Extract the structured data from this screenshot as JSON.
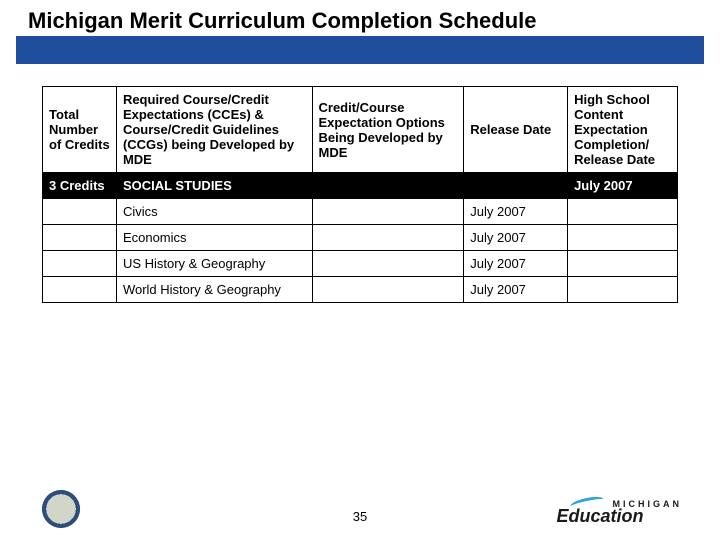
{
  "title": "Michigan Merit Curriculum Completion Schedule",
  "pageNumber": "35",
  "logo": {
    "line1": "MICHIGAN",
    "line2": "Education"
  },
  "table": {
    "headers": {
      "col0": "Total Number of Credits",
      "col1": "Required Course/Credit Expectations (CCEs) &  Course/Credit Guidelines (CCGs) being Developed by MDE",
      "col2": "Credit/Course Expectation Options Being Developed by MDE",
      "col3": "Release Date",
      "col4": "High School Content Expectation Completion/ Release Date"
    },
    "subjectRow": {
      "credits": "3 Credits",
      "name": "SOCIAL STUDIES",
      "hsDate": "July 2007"
    },
    "rows": [
      {
        "course": "Civics",
        "release": "July 2007"
      },
      {
        "course": "Economics",
        "release": "July 2007"
      },
      {
        "course": "US History & Geography",
        "release": "July 2007"
      },
      {
        "course": "World History & Geography",
        "release": "July 2007"
      }
    ]
  },
  "colors": {
    "band": "#1f4e9c",
    "black": "#000000",
    "white": "#ffffff"
  }
}
